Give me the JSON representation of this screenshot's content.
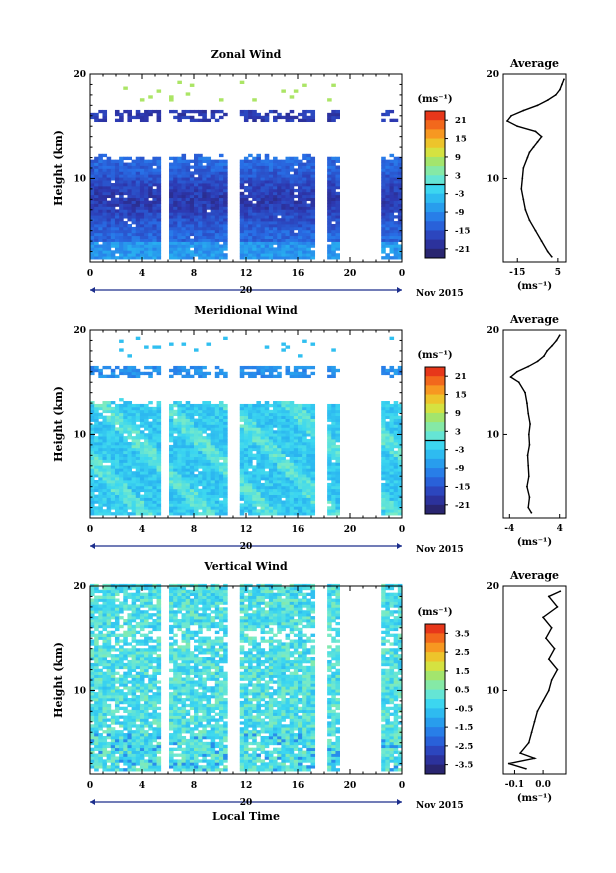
{
  "chart_data": [
    {
      "type": "heatmap",
      "title": "Zonal Wind",
      "ylabel": "Height (km)",
      "xlabel": "",
      "xticks": [
        "0",
        "4",
        "8",
        "12",
        "16",
        "20",
        "0"
      ],
      "date_label": "20",
      "month_label": "Nov 2015",
      "yticks": [
        "20",
        "10"
      ],
      "ylim": [
        2,
        20
      ],
      "xlim": [
        0,
        24
      ],
      "data_gaps_hours": [
        [
          5.5,
          6
        ],
        [
          10.5,
          11.5
        ],
        [
          17.2,
          18.3
        ],
        [
          19.3,
          22.5
        ]
      ],
      "colorbar": {
        "unit": "(ms⁻¹)",
        "ticks": [
          "21",
          "15",
          "9",
          "3",
          "-3",
          "-9",
          "-15",
          "-21"
        ],
        "range": [
          -24,
          24
        ],
        "zero_line": 0
      },
      "field_description_values": {
        "cloud_top_km": 12,
        "upper_band_km": [
          15.5,
          16.5
        ],
        "typical_value": -12,
        "strongest_value": -20
      },
      "profile": {
        "title": "Average",
        "xticks": [
          "-15",
          "5"
        ],
        "xlim": [
          -22,
          9
        ],
        "xlabel": "(ms⁻¹)",
        "yticks": [
          "20",
          "10"
        ],
        "heights": [
          2.5,
          3,
          4,
          5,
          6,
          7,
          8,
          9,
          10,
          11,
          12,
          12.5,
          13,
          13.5,
          14,
          14.5,
          15,
          15.5,
          16,
          16.5,
          17,
          17.5,
          18,
          18.5,
          19,
          19.5
        ],
        "values": [
          2,
          0,
          -3,
          -6,
          -9,
          -11,
          -12,
          -13,
          -12.5,
          -12,
          -10,
          -9,
          -7,
          -5,
          -3,
          -6,
          -15,
          -20,
          -18,
          -12,
          -5,
          0,
          4,
          6,
          7,
          8
        ]
      }
    },
    {
      "type": "heatmap",
      "title": "Meridional Wind",
      "ylabel": "Height (km)",
      "xlabel": "",
      "xticks": [
        "0",
        "4",
        "8",
        "12",
        "16",
        "20",
        "0"
      ],
      "date_label": "20",
      "month_label": "Nov 2015",
      "yticks": [
        "20",
        "10"
      ],
      "ylim": [
        2,
        20
      ],
      "xlim": [
        0,
        24
      ],
      "data_gaps_hours": [
        [
          5.5,
          6
        ],
        [
          10.5,
          11.5
        ],
        [
          17.2,
          18.3
        ],
        [
          19.3,
          22.5
        ]
      ],
      "colorbar": {
        "unit": "(ms⁻¹)",
        "ticks": [
          "21",
          "15",
          "9",
          "3",
          "-3",
          "-9",
          "-15",
          "-21"
        ],
        "range": [
          -24,
          24
        ],
        "zero_line": 0
      },
      "field_description_values": {
        "cloud_top_km": 13,
        "upper_band_km": [
          15.5,
          16.5
        ],
        "typical_value": -3,
        "positive_patch_value": 1
      },
      "profile": {
        "title": "Average",
        "xticks": [
          "-4",
          "4"
        ],
        "xlim": [
          -5,
          5
        ],
        "xlabel": "(ms⁻¹)",
        "yticks": [
          "20",
          "10"
        ],
        "heights": [
          2.5,
          3,
          4,
          5,
          6,
          7,
          8,
          9,
          10,
          11,
          12,
          13,
          14,
          15,
          15.5,
          16,
          16.5,
          17,
          17.5,
          18,
          18.5,
          19,
          19.5
        ],
        "values": [
          -0.5,
          -1,
          -0.8,
          -1.2,
          -0.9,
          -1,
          -1.1,
          -0.8,
          -0.9,
          -0.7,
          -1,
          -1.2,
          -1.5,
          -2.5,
          -3.8,
          -2.8,
          -1,
          0.5,
          1.5,
          2,
          2.8,
          3.5,
          4
        ]
      }
    },
    {
      "type": "heatmap",
      "title": "Vertical Wind",
      "ylabel": "Height (km)",
      "xlabel": "Local Time",
      "xticks": [
        "0",
        "4",
        "8",
        "12",
        "16",
        "20",
        "0"
      ],
      "date_label": "20",
      "month_label": "Nov 2015",
      "yticks": [
        "20",
        "10"
      ],
      "ylim": [
        2,
        20
      ],
      "xlim": [
        0,
        24
      ],
      "data_gaps_hours": [
        [
          5.5,
          6
        ],
        [
          10.5,
          11.5
        ],
        [
          17.2,
          18.3
        ],
        [
          19.3,
          22.5
        ]
      ],
      "colorbar": {
        "unit": "(ms⁻¹)",
        "ticks": [
          "3.5",
          "2.5",
          "1.5",
          "0.5",
          "-0.5",
          "-1.5",
          "-2.5",
          "-3.5"
        ],
        "range": [
          -4,
          4
        ]
      },
      "field_description_values": {
        "typical_value": 0,
        "negative_patch_value": -1.5
      },
      "profile": {
        "title": "Average",
        "xticks": [
          "-0.1",
          "0.0"
        ],
        "xlim": [
          -0.14,
          0.08
        ],
        "xlabel": "(ms⁻¹)",
        "yticks": [
          "20",
          "10"
        ],
        "heights": [
          2.5,
          3,
          3.5,
          4,
          5,
          6,
          7,
          8,
          9,
          10,
          11,
          12,
          13,
          14,
          15,
          16,
          17,
          18,
          19,
          19.5
        ],
        "values": [
          -0.06,
          -0.12,
          -0.03,
          -0.08,
          -0.05,
          -0.04,
          -0.03,
          -0.02,
          0.0,
          0.02,
          0.03,
          0.05,
          0.02,
          0.04,
          0.01,
          0.03,
          0.0,
          0.05,
          0.02,
          0.06
        ]
      }
    }
  ]
}
